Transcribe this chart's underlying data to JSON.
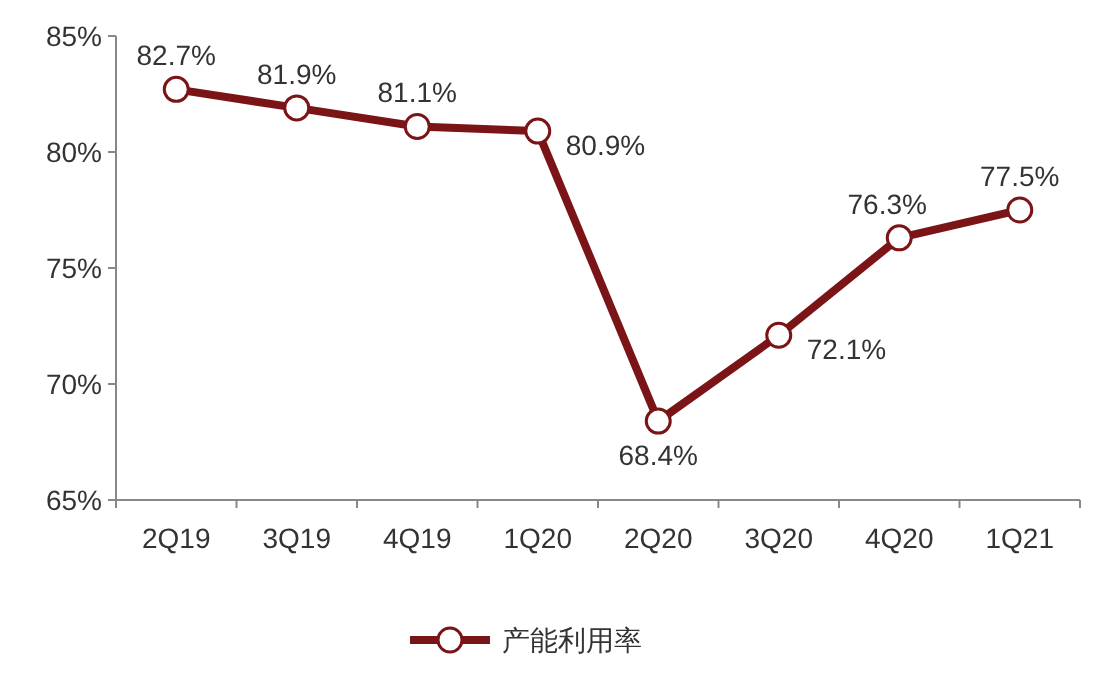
{
  "chart_data": {
    "type": "line",
    "categories": [
      "2Q19",
      "3Q19",
      "4Q19",
      "1Q20",
      "2Q20",
      "3Q20",
      "4Q20",
      "1Q21"
    ],
    "series": [
      {
        "name": "产能利用率",
        "color": "#7b1416",
        "values": [
          82.7,
          81.9,
          81.1,
          80.9,
          68.4,
          72.1,
          76.3,
          77.5
        ],
        "value_labels": [
          "82.7%",
          "81.9%",
          "81.1%",
          "80.9%",
          "68.4%",
          "72.1%",
          "76.3%",
          "77.5%"
        ]
      }
    ],
    "ylim": [
      65,
      85
    ],
    "yticks": [
      {
        "value": 65,
        "label": "65%"
      },
      {
        "value": 70,
        "label": "70%"
      },
      {
        "value": 75,
        "label": "75%"
      },
      {
        "value": 80,
        "label": "80%"
      },
      {
        "value": 85,
        "label": "85%"
      }
    ],
    "marker": "circle",
    "line_style": "solid",
    "grid": false,
    "legend": "bottom"
  }
}
